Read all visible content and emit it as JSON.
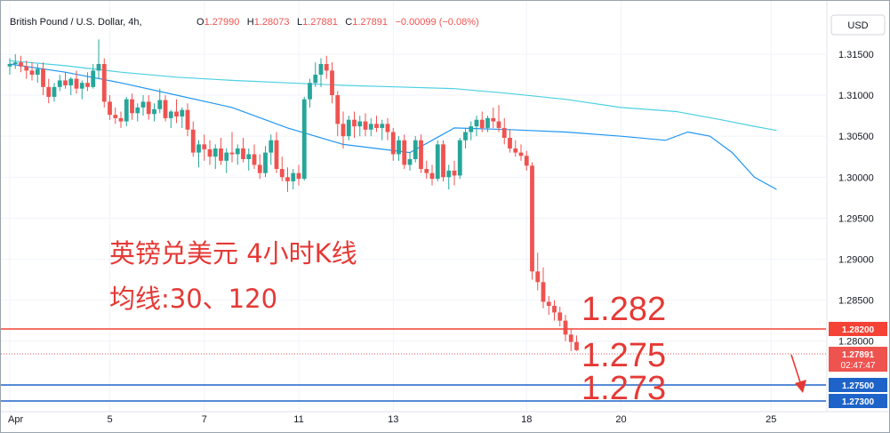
{
  "header": {
    "symbol": "British Pound / U.S. Dollar, 4h,",
    "ohlc": [
      {
        "key": "O",
        "value": "1.27990"
      },
      {
        "key": "H",
        "value": "1.28073"
      },
      {
        "key": "L",
        "value": "1.27881"
      },
      {
        "key": "C",
        "value": "1.27891"
      },
      {
        "key": "",
        "value": "−0.00099 (−0.08%)"
      }
    ]
  },
  "currency_button": "USD",
  "annotations": {
    "title": "英镑兑美元 4小时K线",
    "ma_note": "均线:30、120",
    "level_1282": "1.282",
    "level_1275": "1.275",
    "level_1273": "1.273"
  },
  "price_labels": {
    "line_1282": "1.28200",
    "last_price": "1.27891",
    "countdown": "02:47:47",
    "line_1275": "1.27500",
    "line_1273": "1.27300"
  },
  "colors": {
    "up": "#26a69a",
    "down": "#ef5350",
    "ma30": "#2196f3",
    "ma120": "#4dd0e1",
    "red_line": "#f44336",
    "blue_line": "#1e64c8",
    "arrow": "#e53935"
  },
  "chart_data": {
    "type": "candlestick",
    "ylim": [
      1.2714,
      1.3215
    ],
    "yticks": [
      "1.31500",
      "1.31000",
      "1.30500",
      "1.30000",
      "1.29500",
      "1.29000",
      "1.28500",
      "1.28000"
    ],
    "ytick_values": [
      1.315,
      1.31,
      1.305,
      1.3,
      1.295,
      1.29,
      1.285,
      1.28
    ],
    "xticks": [
      {
        "label": "Apr",
        "index": 0
      },
      {
        "label": "5",
        "index": 18
      },
      {
        "label": "7",
        "index": 35
      },
      {
        "label": "11",
        "index": 52
      },
      {
        "label": "13",
        "index": 69
      },
      {
        "label": "18",
        "index": 93
      },
      {
        "label": "20",
        "index": 110
      },
      {
        "label": "25",
        "index": 137
      }
    ],
    "series_ma30": [
      [
        0,
        1.3138
      ],
      [
        10,
        1.3128
      ],
      [
        20,
        1.3115
      ],
      [
        30,
        1.31
      ],
      [
        40,
        1.3085
      ],
      [
        50,
        1.306
      ],
      [
        60,
        1.304
      ],
      [
        72,
        1.303
      ],
      [
        76,
        1.3045
      ],
      [
        80,
        1.306
      ],
      [
        90,
        1.3058
      ],
      [
        100,
        1.3055
      ],
      [
        110,
        1.305
      ],
      [
        118,
        1.3045
      ],
      [
        122,
        1.3055
      ],
      [
        126,
        1.305
      ],
      [
        130,
        1.303
      ],
      [
        134,
        1.3
      ],
      [
        138,
        1.2985
      ]
    ],
    "series_ma120": [
      [
        0,
        1.3142
      ],
      [
        10,
        1.3136
      ],
      [
        20,
        1.3128
      ],
      [
        30,
        1.3122
      ],
      [
        40,
        1.3118
      ],
      [
        50,
        1.3115
      ],
      [
        60,
        1.3112
      ],
      [
        70,
        1.311
      ],
      [
        80,
        1.3108
      ],
      [
        90,
        1.3102
      ],
      [
        100,
        1.3095
      ],
      [
        110,
        1.3085
      ],
      [
        120,
        1.308
      ],
      [
        128,
        1.307
      ],
      [
        134,
        1.3062
      ],
      [
        138,
        1.3057
      ]
    ],
    "candles": [
      [
        1.3135,
        1.3145,
        1.3125,
        1.3138
      ],
      [
        1.3138,
        1.315,
        1.3132,
        1.314
      ],
      [
        1.314,
        1.3148,
        1.3128,
        1.3135
      ],
      [
        1.3135,
        1.3142,
        1.312,
        1.313
      ],
      [
        1.313,
        1.314,
        1.3118,
        1.3125
      ],
      [
        1.3125,
        1.3138,
        1.3115,
        1.3132
      ],
      [
        1.3132,
        1.314,
        1.31,
        1.311
      ],
      [
        1.311,
        1.312,
        1.309,
        1.3098
      ],
      [
        1.3098,
        1.3115,
        1.3092,
        1.311
      ],
      [
        1.311,
        1.3125,
        1.3105,
        1.3118
      ],
      [
        1.3118,
        1.3128,
        1.3108,
        1.3112
      ],
      [
        1.3112,
        1.3122,
        1.31,
        1.312
      ],
      [
        1.312,
        1.313,
        1.3102,
        1.3108
      ],
      [
        1.3108,
        1.3118,
        1.3095,
        1.3115
      ],
      [
        1.3115,
        1.3128,
        1.3105,
        1.311
      ],
      [
        1.311,
        1.3138,
        1.3108,
        1.313
      ],
      [
        1.313,
        1.3168,
        1.312,
        1.3138
      ],
      [
        1.3138,
        1.3145,
        1.3085,
        1.3092
      ],
      [
        1.3092,
        1.31,
        1.307,
        1.3076
      ],
      [
        1.3076,
        1.3085,
        1.3065,
        1.3072
      ],
      [
        1.3072,
        1.308,
        1.306,
        1.3068
      ],
      [
        1.3068,
        1.3098,
        1.3062,
        1.3095
      ],
      [
        1.3095,
        1.3102,
        1.307,
        1.3078
      ],
      [
        1.3078,
        1.309,
        1.3068,
        1.3085
      ],
      [
        1.3085,
        1.31,
        1.3075,
        1.3092
      ],
      [
        1.3092,
        1.31,
        1.307,
        1.3077
      ],
      [
        1.3077,
        1.309,
        1.3068,
        1.3083
      ],
      [
        1.3083,
        1.3108,
        1.3078,
        1.3094
      ],
      [
        1.3094,
        1.31,
        1.3068,
        1.3072
      ],
      [
        1.3072,
        1.3082,
        1.306,
        1.308
      ],
      [
        1.308,
        1.3095,
        1.3066,
        1.3074
      ],
      [
        1.3074,
        1.3085,
        1.306,
        1.3082
      ],
      [
        1.3082,
        1.309,
        1.305,
        1.3058
      ],
      [
        1.3058,
        1.3068,
        1.3025,
        1.303
      ],
      [
        1.303,
        1.3045,
        1.3012,
        1.304
      ],
      [
        1.304,
        1.3052,
        1.302,
        1.3034
      ],
      [
        1.3034,
        1.3045,
        1.3015,
        1.3025
      ],
      [
        1.3025,
        1.304,
        1.301,
        1.3035
      ],
      [
        1.3035,
        1.3048,
        1.3015,
        1.302
      ],
      [
        1.302,
        1.3035,
        1.3005,
        1.303
      ],
      [
        1.303,
        1.3055,
        1.3018,
        1.3028
      ],
      [
        1.3028,
        1.304,
        1.3015,
        1.3035
      ],
      [
        1.3035,
        1.3048,
        1.3018,
        1.3022
      ],
      [
        1.3022,
        1.3035,
        1.3008,
        1.3028
      ],
      [
        1.3028,
        1.304,
        1.301,
        1.3015
      ],
      [
        1.3015,
        1.3028,
        1.2998,
        1.3005
      ],
      [
        1.3005,
        1.3038,
        1.3,
        1.303
      ],
      [
        1.303,
        1.3052,
        1.3015,
        1.3045
      ],
      [
        1.3045,
        1.3055,
        1.3005,
        1.301
      ],
      [
        1.301,
        1.3025,
        1.2995,
        1.3
      ],
      [
        1.3,
        1.3012,
        1.2982,
        1.2995
      ],
      [
        1.2995,
        1.301,
        1.2985,
        1.3005
      ],
      [
        1.3005,
        1.3015,
        1.299,
        1.2998
      ],
      [
        1.2998,
        1.3098,
        1.2996,
        1.3095
      ],
      [
        1.3095,
        1.312,
        1.3085,
        1.3115
      ],
      [
        1.3115,
        1.314,
        1.311,
        1.3125
      ],
      [
        1.3125,
        1.3145,
        1.311,
        1.3138
      ],
      [
        1.3138,
        1.3148,
        1.312,
        1.313
      ],
      [
        1.313,
        1.314,
        1.309,
        1.31
      ],
      [
        1.31,
        1.3105,
        1.305,
        1.3065
      ],
      [
        1.3065,
        1.308,
        1.3035,
        1.305
      ],
      [
        1.305,
        1.3075,
        1.3045,
        1.307
      ],
      [
        1.307,
        1.308,
        1.3048,
        1.3062
      ],
      [
        1.3062,
        1.3075,
        1.305,
        1.3068
      ],
      [
        1.3068,
        1.3078,
        1.305,
        1.3058
      ],
      [
        1.3058,
        1.3072,
        1.305,
        1.3065
      ],
      [
        1.3065,
        1.3075,
        1.3055,
        1.306
      ],
      [
        1.306,
        1.307,
        1.3045,
        1.3065
      ],
      [
        1.3065,
        1.3072,
        1.3045,
        1.3055
      ],
      [
        1.3055,
        1.306,
        1.302,
        1.3028
      ],
      [
        1.3028,
        1.305,
        1.302,
        1.3045
      ],
      [
        1.3045,
        1.3052,
        1.301,
        1.3015
      ],
      [
        1.3015,
        1.303,
        1.3008,
        1.3022
      ],
      [
        1.3022,
        1.305,
        1.3018,
        1.3045
      ],
      [
        1.3045,
        1.3052,
        1.3005,
        1.301
      ],
      [
        1.301,
        1.302,
        1.2998,
        1.3005
      ],
      [
        1.3005,
        1.3015,
        1.299,
        1.2998
      ],
      [
        1.2998,
        1.3045,
        1.2995,
        1.304
      ],
      [
        1.304,
        1.3045,
        1.2995,
        1.3
      ],
      [
        1.3,
        1.3015,
        1.2985,
        1.3008
      ],
      [
        1.3008,
        1.302,
        1.299,
        1.3002
      ],
      [
        1.3002,
        1.3048,
        1.2998,
        1.3045
      ],
      [
        1.3045,
        1.306,
        1.3035,
        1.3055
      ],
      [
        1.3055,
        1.3068,
        1.3045,
        1.3062
      ],
      [
        1.3062,
        1.3075,
        1.305,
        1.307
      ],
      [
        1.307,
        1.308,
        1.3055,
        1.306
      ],
      [
        1.306,
        1.3075,
        1.3055,
        1.3072
      ],
      [
        1.3072,
        1.3085,
        1.306,
        1.3068
      ],
      [
        1.3068,
        1.3088,
        1.3055,
        1.306
      ],
      [
        1.306,
        1.3072,
        1.304,
        1.3048
      ],
      [
        1.3048,
        1.3058,
        1.303,
        1.3035
      ],
      [
        1.3035,
        1.3045,
        1.3025,
        1.303
      ],
      [
        1.303,
        1.304,
        1.302,
        1.3026
      ],
      [
        1.3026,
        1.3032,
        1.3008,
        1.3014
      ],
      [
        1.3014,
        1.3018,
        1.2875,
        1.2885
      ],
      [
        1.2885,
        1.2908,
        1.2862,
        1.2872
      ],
      [
        1.2872,
        1.289,
        1.284,
        1.2848
      ],
      [
        1.2848,
        1.2855,
        1.2832,
        1.2843
      ],
      [
        1.2843,
        1.285,
        1.2825,
        1.2835
      ],
      [
        1.2835,
        1.2842,
        1.2818,
        1.2825
      ],
      [
        1.2825,
        1.2832,
        1.28,
        1.2808
      ],
      [
        1.2808,
        1.2815,
        1.2788,
        1.2799
      ],
      [
        1.2799,
        1.2807,
        1.2788,
        1.2789
      ]
    ]
  }
}
